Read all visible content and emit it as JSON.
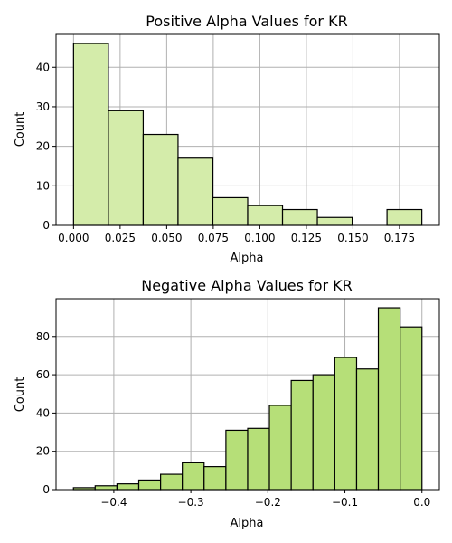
{
  "colors": {
    "positive_fill": "#d4ecaa",
    "negative_fill": "#b6df78",
    "edge": "#000000",
    "grid": "#b0b0b0"
  },
  "chart_data": [
    {
      "type": "bar",
      "subtype": "histogram",
      "title": "Positive Alpha Values for KR",
      "xlabel": "Alpha",
      "ylabel": "Count",
      "bin_edges": [
        0.0,
        0.0187,
        0.0374,
        0.0561,
        0.0748,
        0.0935,
        0.1122,
        0.1309,
        0.1496,
        0.1683,
        0.187
      ],
      "values": [
        46,
        29,
        23,
        17,
        7,
        5,
        4,
        2,
        0,
        4
      ],
      "xlim": [
        -0.0094,
        0.1964
      ],
      "ylim": [
        0,
        48.3
      ],
      "xticks": [
        0.0,
        0.025,
        0.05,
        0.075,
        0.1,
        0.125,
        0.15,
        0.175
      ],
      "xtick_labels": [
        "0.000",
        "0.025",
        "0.050",
        "0.075",
        "0.100",
        "0.125",
        "0.150",
        "0.175"
      ],
      "yticks": [
        0,
        10,
        20,
        30,
        40
      ],
      "ytick_labels": [
        "0",
        "10",
        "20",
        "30",
        "40"
      ],
      "grid": true,
      "legend": "none"
    },
    {
      "type": "bar",
      "subtype": "histogram",
      "title": "Negative Alpha Values for KR",
      "xlabel": "Alpha",
      "ylabel": "Count",
      "bin_edges": [
        -0.4524,
        -0.4242,
        -0.3959,
        -0.3676,
        -0.3393,
        -0.3111,
        -0.2828,
        -0.2545,
        -0.2262,
        -0.198,
        -0.1697,
        -0.1414,
        -0.1131,
        -0.0848,
        -0.0566,
        -0.0283,
        0.0
      ],
      "values": [
        1,
        2,
        3,
        5,
        8,
        14,
        12,
        31,
        32,
        44,
        57,
        60,
        69,
        63,
        95,
        85
      ],
      "xlim": [
        -0.475,
        0.0226
      ],
      "ylim": [
        0,
        99.75
      ],
      "xticks": [
        -0.4,
        -0.3,
        -0.2,
        -0.1,
        0.0
      ],
      "xtick_labels": [
        "−0.4",
        "−0.3",
        "−0.2",
        "−0.1",
        "0.0"
      ],
      "yticks": [
        0,
        20,
        40,
        60,
        80
      ],
      "ytick_labels": [
        "0",
        "20",
        "40",
        "60",
        "80"
      ],
      "grid": true,
      "legend": "none"
    }
  ]
}
